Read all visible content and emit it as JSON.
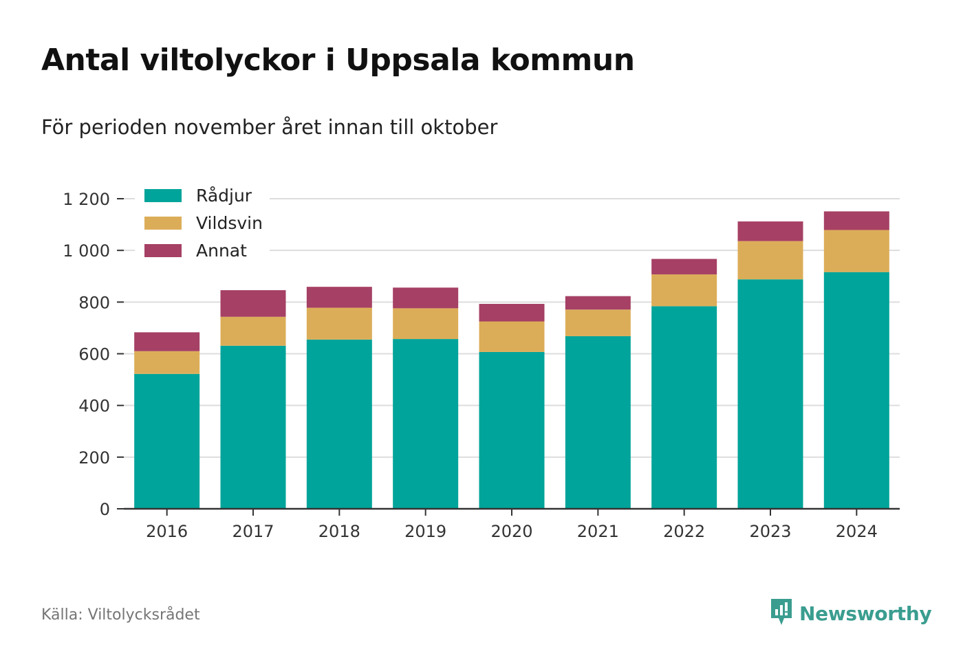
{
  "header": {
    "title": "Antal viltolyckor i Uppsala kommun",
    "subtitle": "För perioden november året innan till oktober"
  },
  "footer": {
    "source": "Källa: Viltolycksrådet",
    "brand": "Newsworthy",
    "brand_icon": "newsworthy-chart-logo-icon",
    "brand_color": "#3a9d8f"
  },
  "chart_data": {
    "type": "bar",
    "stacked": true,
    "categories": [
      "2016",
      "2017",
      "2018",
      "2019",
      "2020",
      "2021",
      "2022",
      "2023",
      "2024"
    ],
    "series": [
      {
        "name": "Rådjur",
        "color": "#00a49a",
        "values": [
          522,
          631,
          655,
          657,
          607,
          668,
          784,
          888,
          916
        ]
      },
      {
        "name": "Vildsvin",
        "color": "#dcad58",
        "values": [
          88,
          112,
          123,
          119,
          118,
          103,
          123,
          148,
          163
        ]
      },
      {
        "name": "Annat",
        "color": "#a64065",
        "values": [
          73,
          103,
          81,
          80,
          68,
          52,
          60,
          76,
          72
        ]
      }
    ],
    "ylim": [
      0,
      1200
    ],
    "yticks": [
      0,
      200,
      400,
      600,
      800,
      1000,
      1200
    ],
    "ytick_labels": [
      "0",
      "200",
      "400",
      "600",
      "800",
      "1 000",
      "1 200"
    ],
    "xlabel": "",
    "ylabel": "",
    "grid": true,
    "legend_position": "top-left"
  }
}
